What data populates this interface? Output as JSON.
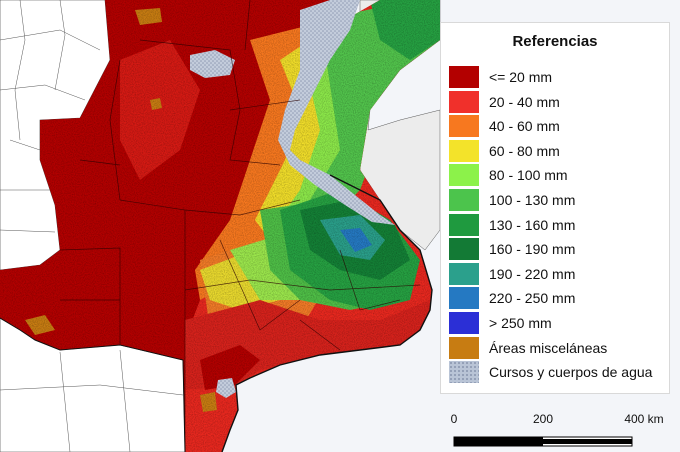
{
  "legend": {
    "title": "Referencias",
    "items": [
      {
        "label": "<= 20 mm",
        "color": "#b30000",
        "pattern": false
      },
      {
        "label": "20 - 40 mm",
        "color": "#f0302b",
        "pattern": false
      },
      {
        "label": "40 - 60 mm",
        "color": "#f7781f",
        "pattern": false
      },
      {
        "label": "60 - 80 mm",
        "color": "#f3e32a",
        "pattern": false
      },
      {
        "label": "80 - 100 mm",
        "color": "#8cf24a",
        "pattern": false
      },
      {
        "label": "100 - 130 mm",
        "color": "#4cc44c",
        "pattern": false
      },
      {
        "label": "130 - 160 mm",
        "color": "#1f9a3f",
        "pattern": false
      },
      {
        "label": "160 - 190 mm",
        "color": "#137a35",
        "pattern": false
      },
      {
        "label": "190 - 220 mm",
        "color": "#2ba08c",
        "pattern": false
      },
      {
        "label": "220 - 250 mm",
        "color": "#2579c2",
        "pattern": false
      },
      {
        "label": "> 250 mm",
        "color": "#2b2fd6",
        "pattern": false
      },
      {
        "label": "Áreas misceláneas",
        "color": "#c77c12",
        "pattern": false
      },
      {
        "label": "Cursos y cuerpos de agua",
        "color": "#b9c4d6",
        "pattern": true
      }
    ]
  },
  "scalebar": {
    "labels": [
      "0",
      "200",
      "400 km"
    ]
  }
}
